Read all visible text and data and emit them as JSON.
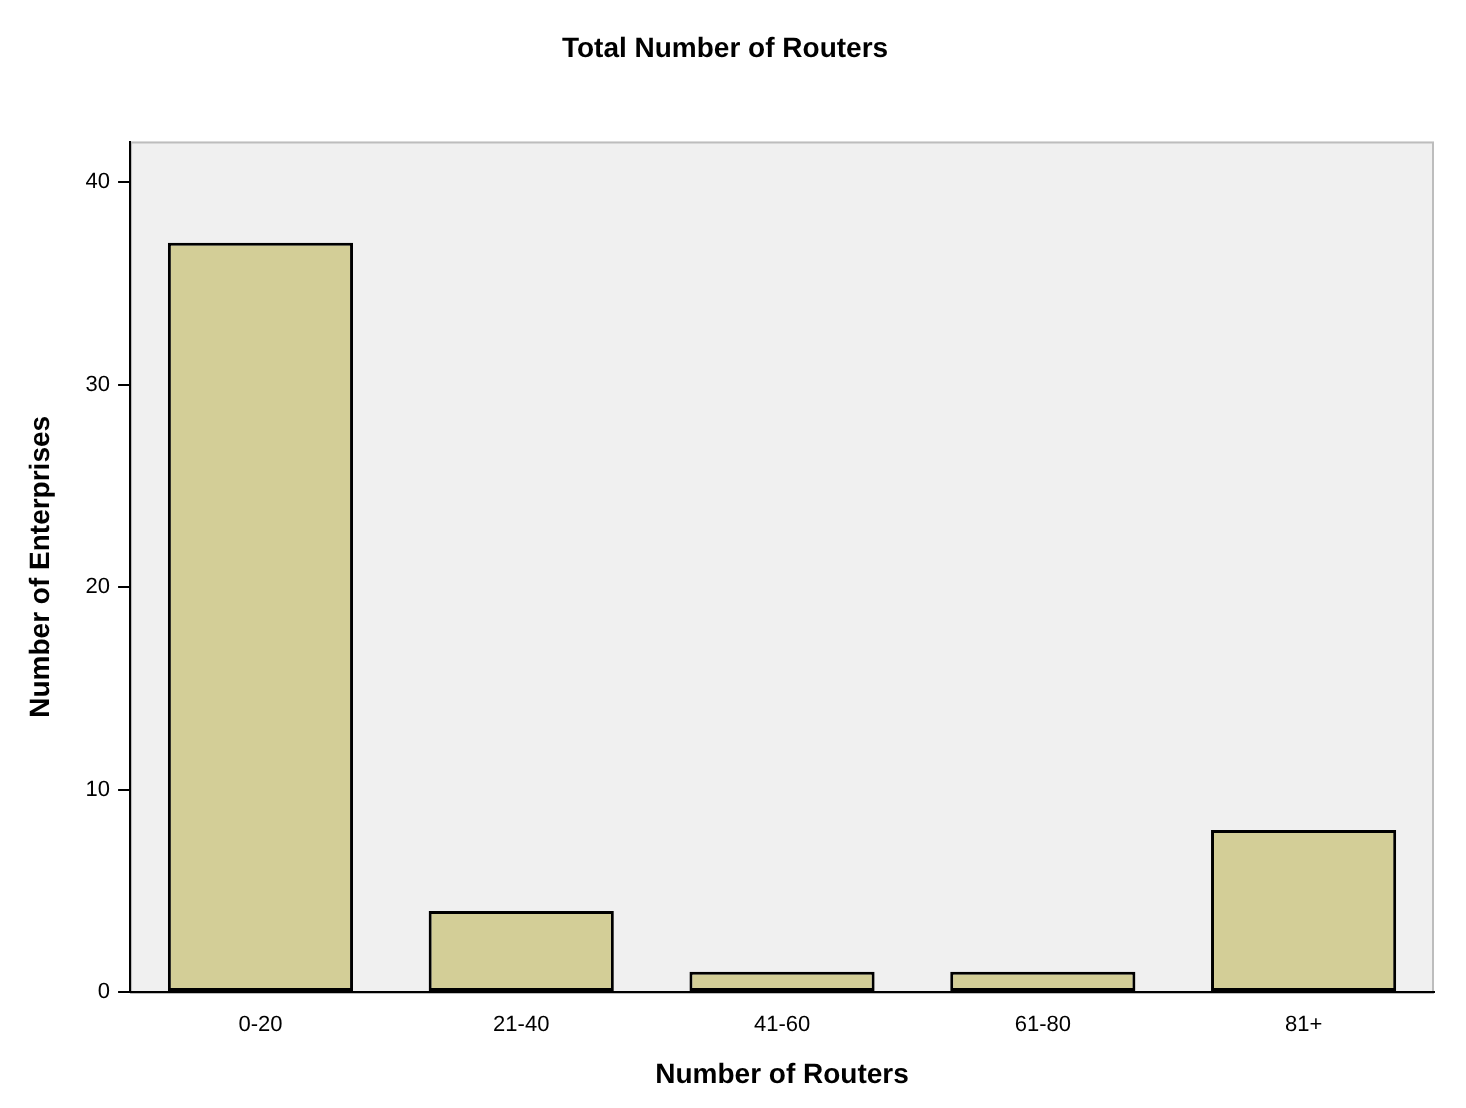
{
  "chart_data": {
    "type": "bar",
    "title": "Total Number of Routers",
    "xlabel": "Number of Routers",
    "ylabel": "Number of Enterprises",
    "categories": [
      "0-20",
      "21-40",
      "41-60",
      "61-80",
      "81+"
    ],
    "values": [
      37,
      4,
      1,
      1,
      8
    ],
    "color": "#d3ce97",
    "ylim": [
      0,
      42
    ],
    "yticks": [
      0,
      10,
      20,
      30,
      40
    ],
    "grid": false,
    "legend": false
  }
}
